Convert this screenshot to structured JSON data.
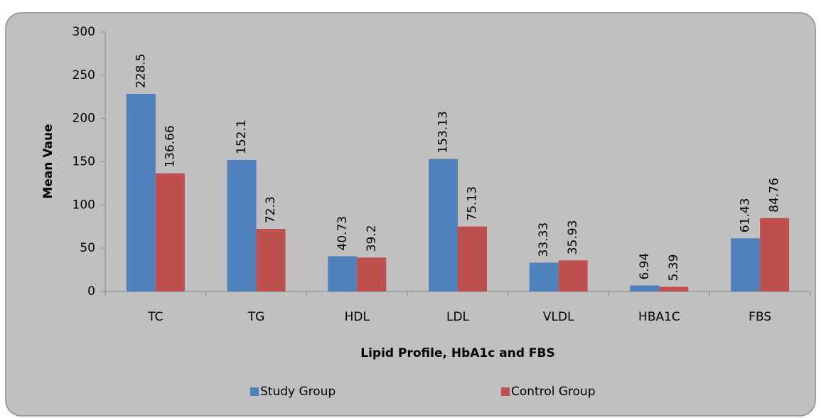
{
  "chart_data": {
    "type": "bar",
    "y_label": "Mean Vaue",
    "x_label": "Lipid Profile, HbA1c and FBS",
    "categories": [
      "TC",
      "TG",
      "HDL",
      "LDL",
      "VLDL",
      "HBA1C",
      "FBS"
    ],
    "series": [
      {
        "name": "Study Group",
        "color": "#4f81bd",
        "values": [
          228.5,
          152.1,
          40.73,
          153.13,
          33.33,
          6.94,
          61.43
        ]
      },
      {
        "name": "Control Group",
        "color": "#c0504d",
        "values": [
          136.66,
          72.3,
          39.2,
          75.13,
          35.93,
          5.39,
          84.76
        ]
      }
    ],
    "ylim": [
      0,
      300
    ],
    "yticks": [
      0,
      50,
      100,
      150,
      200,
      250,
      300
    ],
    "grid": false,
    "legend": "bottom"
  }
}
